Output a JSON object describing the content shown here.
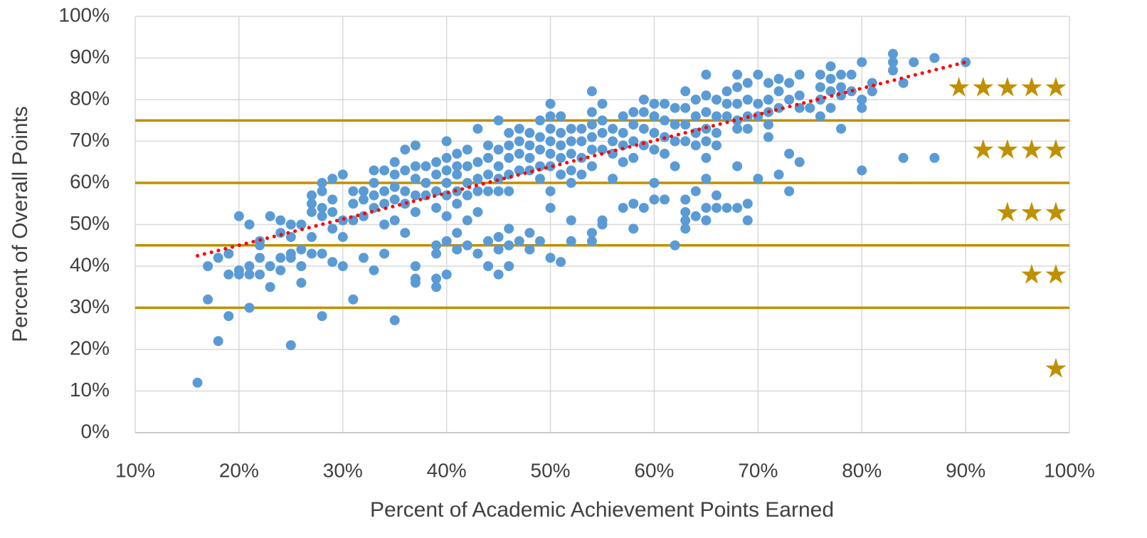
{
  "chart_data": {
    "type": "scatter",
    "xlabel": "Percent of Academic Achievement Points Earned",
    "ylabel": "Percent of Overall Points",
    "xlim": [
      10,
      100
    ],
    "xticks": [
      {
        "value": 10,
        "label": "10%"
      },
      {
        "value": 20,
        "label": "20%"
      },
      {
        "value": 30,
        "label": "30%"
      },
      {
        "value": 40,
        "label": "40%"
      },
      {
        "value": 50,
        "label": "50%"
      },
      {
        "value": 60,
        "label": "60%"
      },
      {
        "value": 70,
        "label": "70%"
      },
      {
        "value": 80,
        "label": "80%"
      },
      {
        "value": 90,
        "label": "90%"
      },
      {
        "value": 100,
        "label": "100%"
      }
    ],
    "ylim": [
      0,
      100
    ],
    "yticks": [
      {
        "value": 0,
        "label": "0%"
      },
      {
        "value": 10,
        "label": "10%"
      },
      {
        "value": 20,
        "label": "20%"
      },
      {
        "value": 30,
        "label": "30%"
      },
      {
        "value": 40,
        "label": "40%"
      },
      {
        "value": 50,
        "label": "50%"
      },
      {
        "value": 60,
        "label": "60%"
      },
      {
        "value": 70,
        "label": "70%"
      },
      {
        "value": 80,
        "label": "80%"
      },
      {
        "value": 90,
        "label": "90%"
      },
      {
        "value": 100,
        "label": "100%"
      }
    ],
    "grid": true,
    "series": [
      {
        "color": "#5b9bd5",
        "x": [
          16,
          17,
          17,
          18,
          18,
          19,
          19,
          19,
          20,
          20,
          20,
          21,
          21,
          21,
          21,
          22,
          22,
          22,
          22,
          23,
          23,
          23,
          24,
          24,
          24,
          24,
          25,
          25,
          25,
          25,
          25,
          26,
          26,
          26,
          26,
          27,
          27,
          27,
          27,
          27,
          28,
          28,
          28,
          28,
          28,
          28,
          29,
          29,
          29,
          29,
          29,
          30,
          30,
          30,
          30,
          31,
          31,
          31,
          31,
          32,
          32,
          32,
          32,
          33,
          33,
          33,
          33,
          33,
          34,
          34,
          34,
          34,
          34,
          35,
          35,
          35,
          35,
          35,
          35,
          36,
          36,
          36,
          36,
          36,
          37,
          37,
          37,
          37,
          37,
          37,
          37,
          37,
          38,
          38,
          38,
          39,
          39,
          39,
          39,
          39,
          39,
          39,
          39,
          40,
          40,
          40,
          40,
          40,
          40,
          40,
          40,
          41,
          41,
          41,
          41,
          41,
          41,
          41,
          42,
          42,
          42,
          42,
          42,
          42,
          43,
          43,
          43,
          43,
          43,
          43,
          44,
          44,
          44,
          44,
          44,
          44,
          45,
          45,
          45,
          45,
          45,
          45,
          45,
          45,
          46,
          46,
          46,
          46,
          46,
          46,
          46,
          46,
          47,
          47,
          47,
          47,
          47,
          48,
          48,
          48,
          48,
          48,
          48,
          49,
          49,
          49,
          49,
          49,
          49,
          50,
          50,
          50,
          50,
          50,
          50,
          50,
          50,
          50,
          51,
          51,
          51,
          51,
          51,
          51,
          52,
          52,
          52,
          52,
          52,
          52,
          52,
          53,
          53,
          53,
          53,
          54,
          54,
          54,
          54,
          54,
          54,
          54,
          54,
          55,
          55,
          55,
          55,
          55,
          55,
          56,
          56,
          56,
          56,
          57,
          57,
          57,
          57,
          57,
          58,
          58,
          58,
          58,
          58,
          58,
          59,
          59,
          59,
          59,
          59,
          60,
          60,
          60,
          60,
          60,
          60,
          61,
          61,
          61,
          61,
          61,
          62,
          62,
          62,
          62,
          62,
          63,
          63,
          63,
          63,
          63,
          63,
          63,
          63,
          64,
          64,
          64,
          64,
          64,
          64,
          65,
          65,
          65,
          65,
          65,
          65,
          65,
          65,
          65,
          66,
          66,
          66,
          66,
          66,
          66,
          67,
          67,
          67,
          67,
          68,
          68,
          68,
          68,
          68,
          68,
          68,
          69,
          69,
          69,
          69,
          69,
          69,
          70,
          70,
          70,
          70,
          71,
          71,
          71,
          71,
          71,
          72,
          72,
          72,
          72,
          73,
          73,
          73,
          73,
          74,
          74,
          74,
          74,
          75,
          76,
          76,
          76,
          76,
          77,
          77,
          77,
          77,
          78,
          78,
          78,
          78,
          79,
          79,
          80,
          80,
          80,
          80,
          81,
          81,
          83,
          83,
          83,
          84,
          84,
          85,
          87,
          87,
          90
        ],
        "values": [
          12,
          40,
          32,
          42,
          22,
          43,
          38,
          28,
          52,
          39,
          38,
          50,
          40,
          38,
          30,
          46,
          42,
          38,
          45,
          52,
          40,
          35,
          51,
          48,
          42,
          39,
          50,
          47,
          43,
          42,
          21,
          50,
          44,
          40,
          36,
          57,
          55,
          53,
          47,
          43,
          60,
          58,
          54,
          52,
          43,
          28,
          61,
          56,
          53,
          49,
          41,
          62,
          51,
          47,
          40,
          58,
          55,
          51,
          32,
          58,
          56,
          52,
          42,
          63,
          60,
          57,
          54,
          39,
          63,
          58,
          55,
          50,
          43,
          65,
          62,
          59,
          56,
          51,
          27,
          68,
          63,
          58,
          55,
          48,
          69,
          64,
          61,
          57,
          53,
          40,
          37,
          36,
          64,
          60,
          57,
          65,
          62,
          58,
          54,
          45,
          43,
          37,
          35,
          70,
          66,
          63,
          60,
          57,
          52,
          46,
          38,
          67,
          64,
          62,
          58,
          55,
          48,
          44,
          68,
          64,
          60,
          57,
          51,
          45,
          73,
          65,
          61,
          58,
          53,
          43,
          69,
          66,
          62,
          58,
          46,
          40,
          75,
          68,
          64,
          61,
          58,
          47,
          44,
          38,
          72,
          69,
          66,
          62,
          58,
          49,
          45,
          40,
          73,
          70,
          67,
          63,
          46,
          72,
          69,
          66,
          63,
          48,
          44,
          75,
          71,
          68,
          64,
          61,
          46,
          79,
          76,
          73,
          70,
          67,
          64,
          58,
          54,
          42,
          76,
          72,
          69,
          66,
          62,
          41,
          73,
          70,
          67,
          63,
          60,
          51,
          46,
          73,
          70,
          66,
          62,
          82,
          77,
          74,
          71,
          68,
          64,
          48,
          46,
          79,
          75,
          72,
          68,
          51,
          50,
          73,
          70,
          67,
          61,
          76,
          72,
          69,
          65,
          54,
          77,
          74,
          70,
          66,
          55,
          49,
          80,
          77,
          73,
          69,
          54,
          79,
          76,
          72,
          68,
          60,
          56,
          79,
          75,
          71,
          67,
          56,
          78,
          74,
          70,
          64,
          45,
          82,
          78,
          74,
          70,
          56,
          53,
          51,
          49,
          80,
          76,
          72,
          69,
          58,
          52,
          86,
          81,
          77,
          73,
          70,
          66,
          61,
          54,
          51,
          80,
          76,
          72,
          69,
          57,
          54,
          82,
          79,
          76,
          54,
          86,
          83,
          79,
          75,
          73,
          64,
          54,
          84,
          80,
          76,
          73,
          55,
          51,
          86,
          79,
          76,
          61,
          84,
          80,
          77,
          74,
          71,
          85,
          82,
          78,
          62,
          84,
          80,
          67,
          58,
          86,
          81,
          78,
          65,
          78,
          86,
          83,
          80,
          76,
          88,
          85,
          82,
          78,
          86,
          83,
          81,
          73,
          86,
          82,
          89,
          80,
          78,
          63,
          84,
          82,
          91,
          89,
          87,
          84,
          66,
          89,
          90,
          66,
          89
        ]
      },
      {
        "type": "line",
        "style": "dotted",
        "color": "#ff0000",
        "x": [
          16,
          90
        ],
        "values": [
          42.5,
          89
        ]
      }
    ],
    "thresholds": {
      "color": "#bf9000",
      "values": [
        30,
        45,
        60,
        75
      ]
    },
    "ratings": {
      "color": "#bf9000",
      "labels": [
        "★",
        "★★",
        "★★★",
        "★★★★",
        "★★★★★"
      ]
    }
  }
}
